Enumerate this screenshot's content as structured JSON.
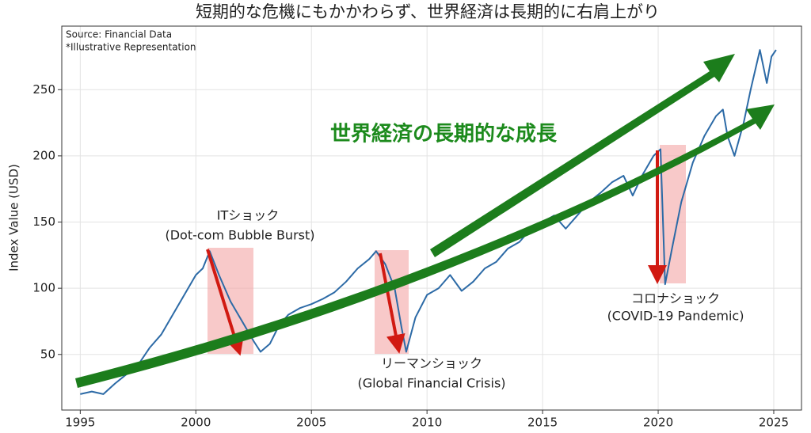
{
  "chart_data": {
    "type": "line",
    "title": "短期的な危機にもかかわらず、世界経済は長期的に右肩上がり",
    "source": "Source: Financial Data",
    "note": "*Illustrative Representation",
    "y_label": "Index Value (USD)",
    "headline": "世界経済の長期的な成長",
    "annotations": [
      "ITショック",
      "(Dot-com Bubble Burst)",
      "リーマンショック",
      "(Global Financial Crisis)",
      "コロナショック",
      "(COVID-19 Pandemic)"
    ],
    "xlim": [
      1994.2,
      2026.2
    ],
    "ylim": [
      8,
      298
    ],
    "xticks": [
      1995,
      2000,
      2005,
      2010,
      2015,
      2020,
      2025
    ],
    "yticks": [
      50,
      100,
      150,
      200,
      250
    ],
    "grid": true,
    "series": [
      {
        "color": "#2c6aa6",
        "x": [
          1995.0,
          1995.5,
          1996.0,
          1996.5,
          1997.0,
          1997.5,
          1998.0,
          1998.5,
          1999.0,
          1999.5,
          2000.0,
          2000.3,
          2000.6,
          2001.0,
          2001.5,
          2002.0,
          2002.5,
          2002.8,
          2003.2,
          2003.6,
          2004.0,
          2004.5,
          2005.0,
          2005.5,
          2006.0,
          2006.5,
          2007.0,
          2007.5,
          2007.8,
          2008.2,
          2008.6,
          2008.9,
          2009.1,
          2009.5,
          2010.0,
          2010.5,
          2011.0,
          2011.5,
          2012.0,
          2012.5,
          2013.0,
          2013.5,
          2014.0,
          2014.5,
          2015.0,
          2015.5,
          2016.0,
          2016.5,
          2017.0,
          2017.5,
          2018.0,
          2018.5,
          2018.9,
          2019.3,
          2019.8,
          2020.1,
          2020.3,
          2020.6,
          2021.0,
          2021.5,
          2022.0,
          2022.5,
          2022.8,
          2023.0,
          2023.3,
          2023.7,
          2024.0,
          2024.4,
          2024.7,
          2024.9,
          2025.1
        ],
        "values": [
          20,
          22,
          20,
          28,
          35,
          42,
          55,
          65,
          80,
          95,
          110,
          115,
          128,
          110,
          90,
          75,
          60,
          52,
          58,
          72,
          80,
          85,
          88,
          92,
          97,
          105,
          115,
          122,
          128,
          118,
          100,
          70,
          52,
          78,
          95,
          100,
          110,
          98,
          105,
          115,
          120,
          130,
          135,
          145,
          150,
          155,
          145,
          155,
          165,
          172,
          180,
          185,
          170,
          185,
          200,
          205,
          103,
          130,
          165,
          195,
          215,
          230,
          235,
          215,
          200,
          225,
          250,
          280,
          255,
          275,
          280
        ]
      }
    ]
  }
}
